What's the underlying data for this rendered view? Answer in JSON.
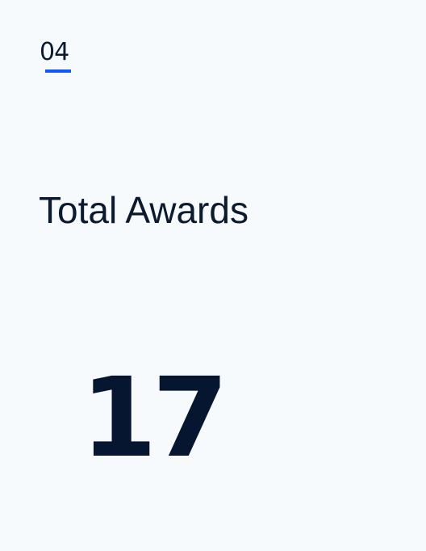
{
  "card": {
    "index": "04",
    "label": "Total Awards",
    "value": "17"
  },
  "colors": {
    "background": "#f6fafd",
    "text": "#0b1a2e",
    "accent": "#1559f5"
  }
}
